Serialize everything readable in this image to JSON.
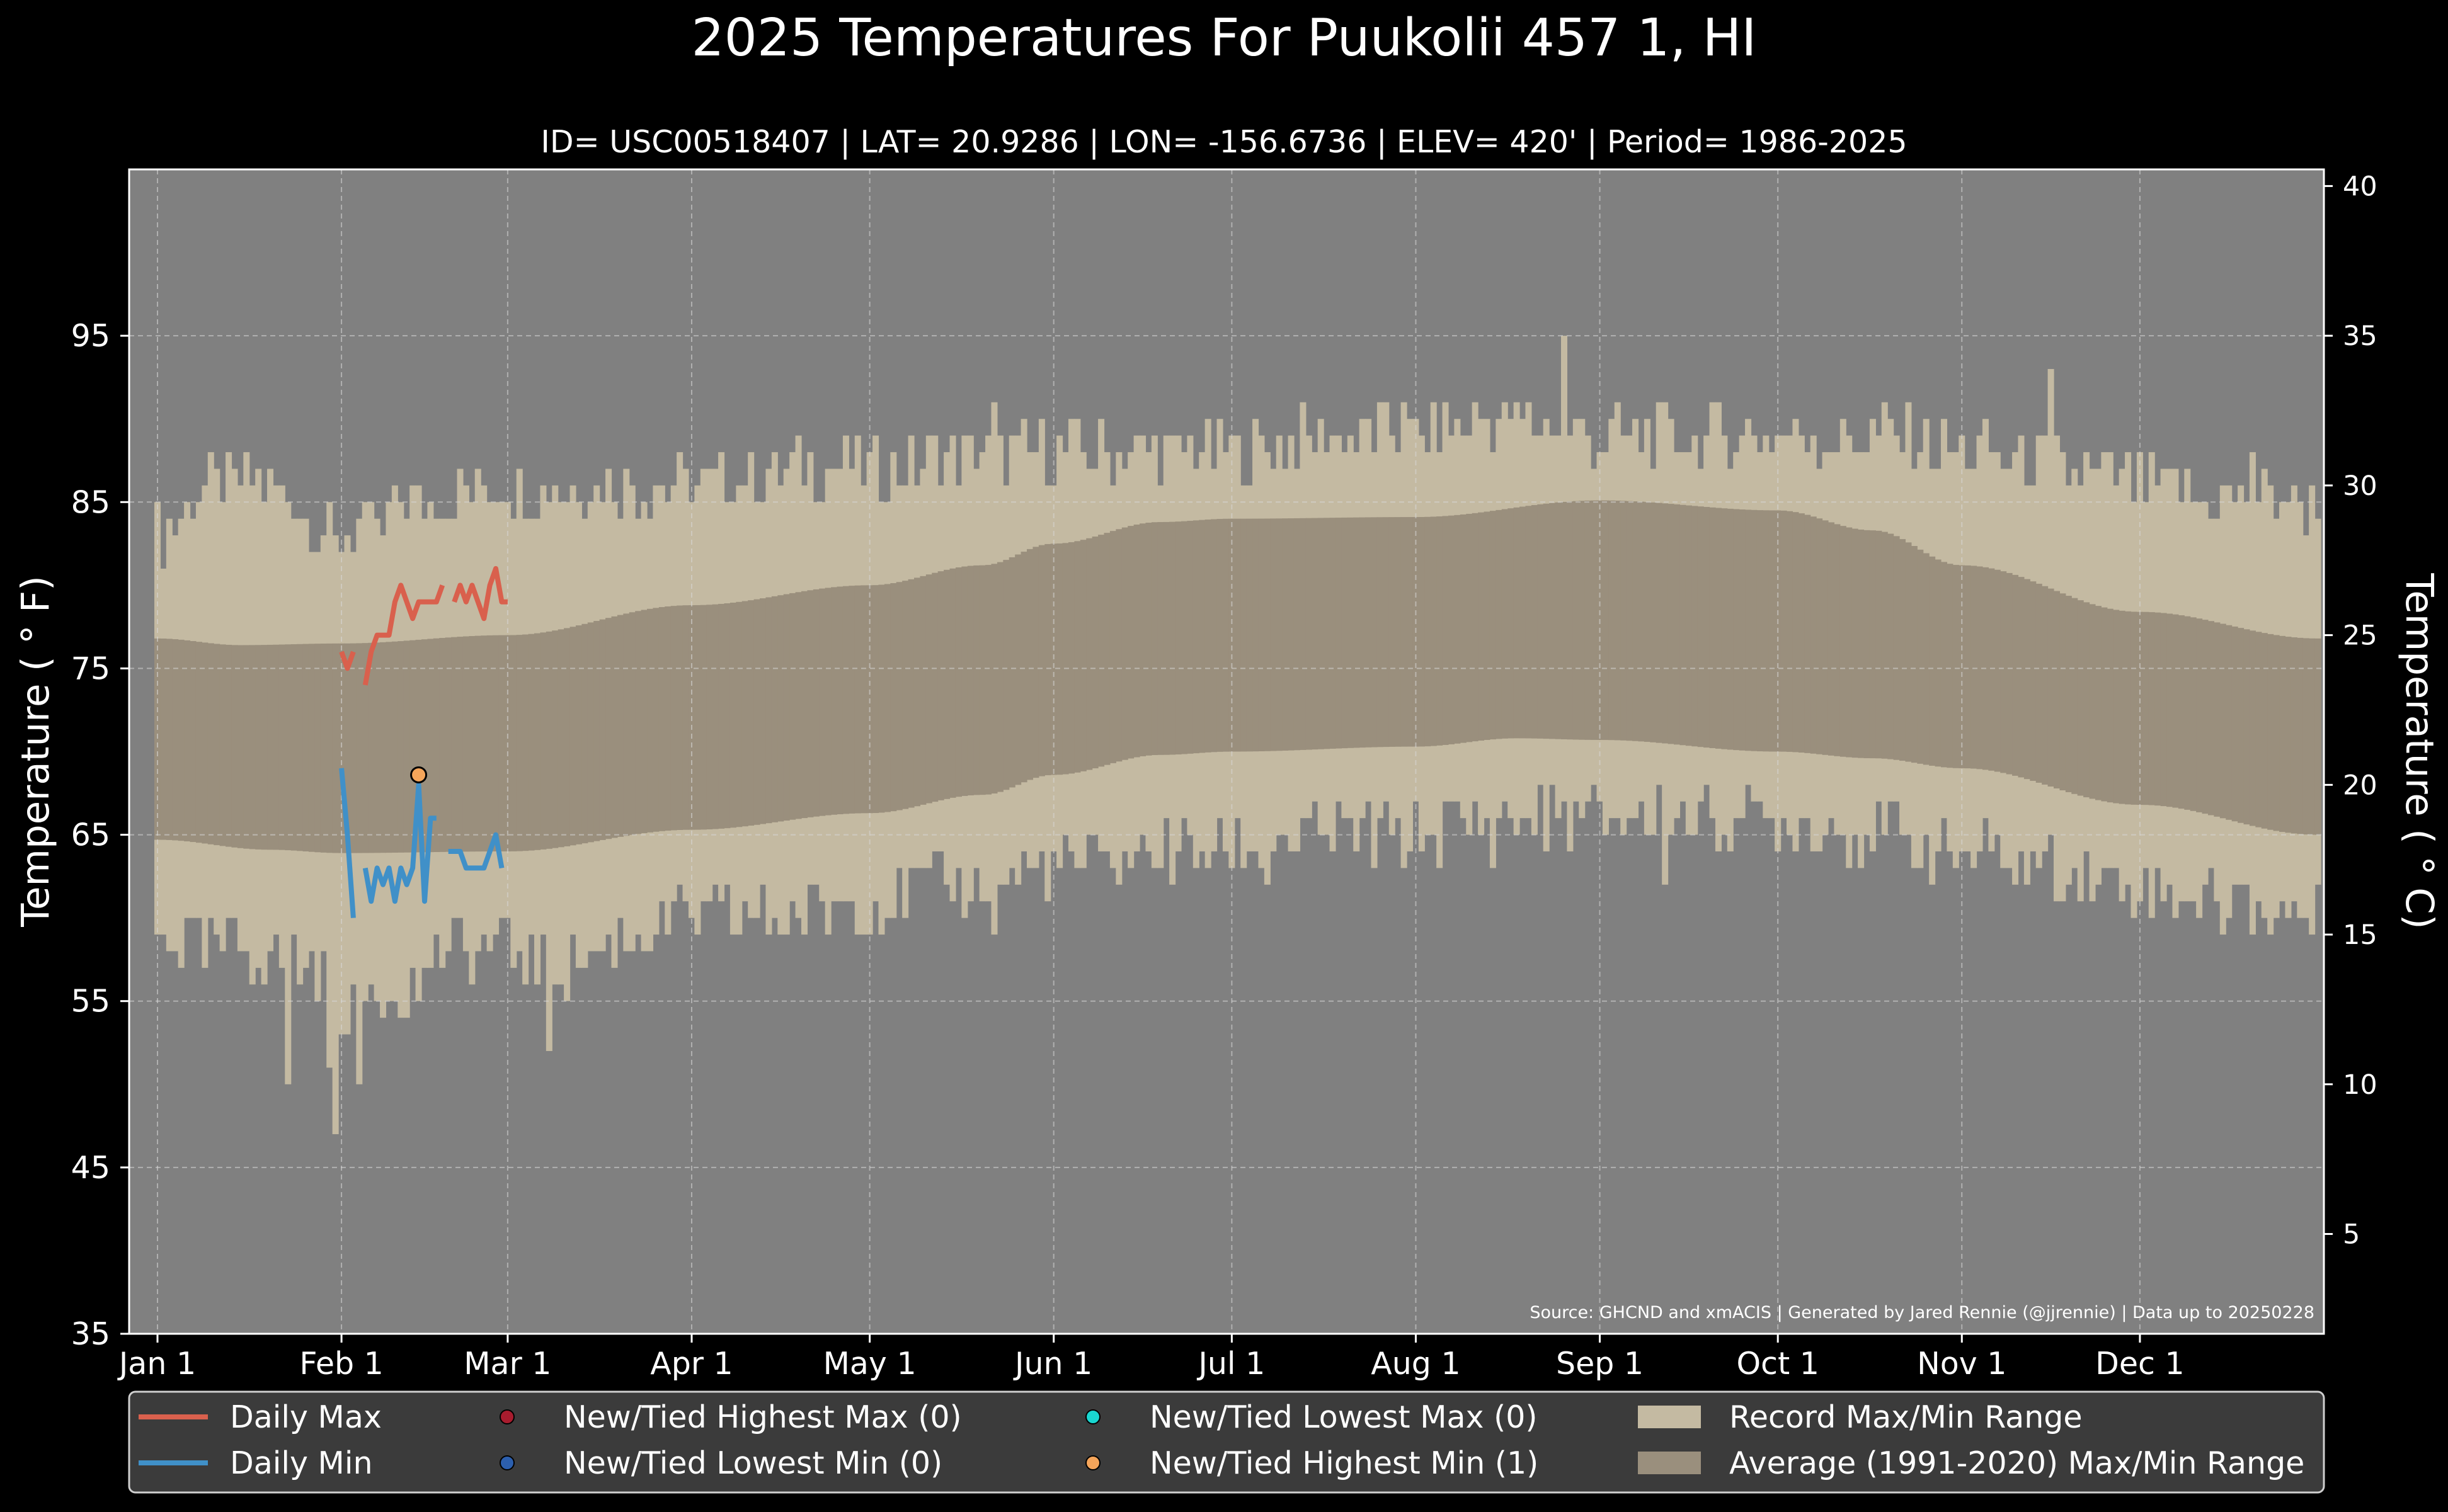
{
  "chart_data": {
    "type": "line",
    "title": "2025 Temperatures For Puukolii 457 1, HI",
    "subtitle": "ID= USC00518407 | LAT= 20.9286 | LON= -156.6736 | ELEV= 420' | Period= 1986-2025",
    "ylabel": "Temperature ($^\\circ$F)",
    "ylabel_display": "Temperature ( ° F)",
    "y2label_display": "Temperature ( ° C)",
    "source": "Source: GHCND and xmACIS | Generated by Jared Rennie (@jjrennie) | Data up to 20250228",
    "ylim": [
      35,
      105
    ],
    "y2lim": [
      1.6667,
      40.5556
    ],
    "xlim": [
      0,
      365
    ],
    "grid": true,
    "legend_position": "bottom",
    "yticks": [
      35,
      45,
      55,
      65,
      75,
      85,
      95
    ],
    "y2ticks": [
      5,
      10,
      15,
      20,
      25,
      30,
      35,
      40
    ],
    "xticks": [
      {
        "day": 1,
        "label": "Jan 1"
      },
      {
        "day": 32,
        "label": "Feb 1"
      },
      {
        "day": 60,
        "label": "Mar 1"
      },
      {
        "day": 91,
        "label": "Apr 1"
      },
      {
        "day": 121,
        "label": "May 1"
      },
      {
        "day": 152,
        "label": "Jun 1"
      },
      {
        "day": 182,
        "label": "Jul 1"
      },
      {
        "day": 213,
        "label": "Aug 1"
      },
      {
        "day": 244,
        "label": "Sep 1"
      },
      {
        "day": 274,
        "label": "Oct 1"
      },
      {
        "day": 305,
        "label": "Nov 1"
      },
      {
        "day": 335,
        "label": "Dec 1"
      }
    ],
    "average_max_anchors": [
      [
        1,
        76.8
      ],
      [
        15,
        76.4
      ],
      [
        32,
        76.5
      ],
      [
        60,
        77.0
      ],
      [
        91,
        78.8
      ],
      [
        121,
        80.0
      ],
      [
        140,
        81.2
      ],
      [
        152,
        82.5
      ],
      [
        170,
        83.8
      ],
      [
        182,
        84.0
      ],
      [
        213,
        84.1
      ],
      [
        244,
        85.1
      ],
      [
        274,
        84.5
      ],
      [
        290,
        83.3
      ],
      [
        305,
        81.2
      ],
      [
        335,
        78.4
      ],
      [
        365,
        76.8
      ]
    ],
    "average_min_anchors": [
      [
        1,
        64.7
      ],
      [
        20,
        64.1
      ],
      [
        32,
        63.9
      ],
      [
        60,
        64.0
      ],
      [
        91,
        65.3
      ],
      [
        121,
        66.3
      ],
      [
        140,
        67.4
      ],
      [
        152,
        68.6
      ],
      [
        170,
        69.8
      ],
      [
        182,
        70.0
      ],
      [
        213,
        70.3
      ],
      [
        230,
        70.8
      ],
      [
        244,
        70.7
      ],
      [
        274,
        70.0
      ],
      [
        290,
        69.6
      ],
      [
        305,
        69.0
      ],
      [
        335,
        66.8
      ],
      [
        365,
        65.0
      ]
    ],
    "record_max_anchors": [
      [
        1,
        83
      ],
      [
        10,
        86
      ],
      [
        20,
        86
      ],
      [
        32,
        83
      ],
      [
        45,
        85
      ],
      [
        60,
        86
      ],
      [
        91,
        86
      ],
      [
        110,
        87
      ],
      [
        121,
        87
      ],
      [
        140,
        88
      ],
      [
        152,
        88
      ],
      [
        182,
        88
      ],
      [
        200,
        89
      ],
      [
        213,
        89
      ],
      [
        230,
        90
      ],
      [
        244,
        89
      ],
      [
        260,
        89
      ],
      [
        274,
        89
      ],
      [
        290,
        89
      ],
      [
        305,
        88
      ],
      [
        320,
        87
      ],
      [
        335,
        86
      ],
      [
        350,
        85
      ],
      [
        365,
        85
      ]
    ],
    "record_min_anchors": [
      [
        1,
        59
      ],
      [
        10,
        58
      ],
      [
        20,
        58
      ],
      [
        28,
        57
      ],
      [
        32,
        55
      ],
      [
        40,
        56
      ],
      [
        50,
        58
      ],
      [
        60,
        58
      ],
      [
        70,
        57
      ],
      [
        80,
        59
      ],
      [
        91,
        60
      ],
      [
        105,
        60
      ],
      [
        121,
        61
      ],
      [
        135,
        62
      ],
      [
        152,
        63
      ],
      [
        170,
        64
      ],
      [
        182,
        64
      ],
      [
        200,
        65
      ],
      [
        213,
        65
      ],
      [
        230,
        66
      ],
      [
        244,
        66
      ],
      [
        260,
        66
      ],
      [
        274,
        66
      ],
      [
        290,
        65
      ],
      [
        305,
        64
      ],
      [
        320,
        63
      ],
      [
        335,
        62
      ],
      [
        350,
        61
      ],
      [
        365,
        60
      ]
    ],
    "record_max_spikes": [
      [
        142,
        91
      ],
      [
        211,
        91
      ],
      [
        238,
        95
      ],
      [
        320,
        93
      ],
      [
        354,
        88
      ],
      [
        39,
        83
      ],
      [
        31,
        83
      ]
    ],
    "record_min_spikes": [
      [
        23,
        50
      ],
      [
        30,
        51
      ],
      [
        31,
        47
      ],
      [
        35,
        50
      ],
      [
        45,
        55
      ],
      [
        67,
        52
      ],
      [
        142,
        59
      ],
      [
        188,
        62
      ],
      [
        226,
        63
      ],
      [
        255,
        62
      ]
    ],
    "series": [
      {
        "name": "Daily Max",
        "color": "#d9604d",
        "segments": [
          [
            [
              32,
              76
            ],
            [
              33,
              75
            ],
            [
              34,
              76
            ]
          ],
          [
            [
              36,
              74
            ],
            [
              37,
              76
            ],
            [
              38,
              77
            ],
            [
              39,
              77
            ],
            [
              40,
              77
            ],
            [
              41,
              79
            ],
            [
              42,
              80
            ],
            [
              43,
              79
            ],
            [
              44,
              78
            ],
            [
              45,
              79
            ],
            [
              46,
              79
            ],
            [
              47,
              79
            ],
            [
              48,
              79
            ],
            [
              49,
              80
            ]
          ],
          [
            [
              51,
              79
            ],
            [
              52,
              80
            ],
            [
              53,
              79
            ],
            [
              54,
              80
            ],
            [
              55,
              79
            ],
            [
              56,
              78
            ],
            [
              57,
              80
            ],
            [
              58,
              81
            ],
            [
              59,
              79
            ],
            [
              60,
              79
            ]
          ]
        ]
      },
      {
        "name": "Daily Min",
        "color": "#4090c8",
        "segments": [
          [
            [
              32,
              69
            ],
            [
              33,
              65
            ],
            [
              34,
              60
            ]
          ],
          [
            [
              36,
              63
            ],
            [
              37,
              61
            ],
            [
              38,
              63
            ],
            [
              39,
              62
            ],
            [
              40,
              63
            ],
            [
              41,
              61
            ],
            [
              42,
              63
            ],
            [
              43,
              62
            ],
            [
              44,
              63
            ],
            [
              45,
              68
            ],
            [
              46,
              61
            ],
            [
              47,
              66
            ],
            [
              48,
              66
            ]
          ],
          [
            [
              50,
              64
            ],
            [
              51,
              64
            ],
            [
              52,
              64
            ],
            [
              53,
              63
            ],
            [
              54,
              63
            ],
            [
              55,
              63
            ],
            [
              56,
              63
            ],
            [
              57,
              64
            ],
            [
              58,
              65
            ],
            [
              59,
              63
            ]
          ]
        ]
      }
    ],
    "markers": [
      {
        "name": "New/Tied Highest Min",
        "x": 45,
        "y": 68.6,
        "color": "#f5a55a"
      }
    ],
    "legend": [
      {
        "label": "Daily Max",
        "kind": "line",
        "color": "#d9604d"
      },
      {
        "label": "Daily Min",
        "kind": "line",
        "color": "#4090c8"
      },
      {
        "label": "New/Tied Highest Max (0)",
        "kind": "dot",
        "color": "#a81c2e"
      },
      {
        "label": "New/Tied Lowest Min (0)",
        "kind": "dot",
        "color": "#2c5fae"
      },
      {
        "label": "New/Tied Lowest Max (0)",
        "kind": "dot",
        "color": "#19d6d0"
      },
      {
        "label": "New/Tied Highest Min (1)",
        "kind": "dot",
        "color": "#f5a55a"
      },
      {
        "label": "Record Max/Min Range",
        "kind": "patch",
        "color": "#c4baa2"
      },
      {
        "label": "Average (1991-2020) Max/Min Range",
        "kind": "patch",
        "color": "#9a8f7d"
      }
    ],
    "colors": {
      "background": "#000000",
      "plot_background": "#808080",
      "record_band": "#c4baa2",
      "average_band": "#9a8f7d",
      "legend_background": "#3b3b3b"
    }
  }
}
